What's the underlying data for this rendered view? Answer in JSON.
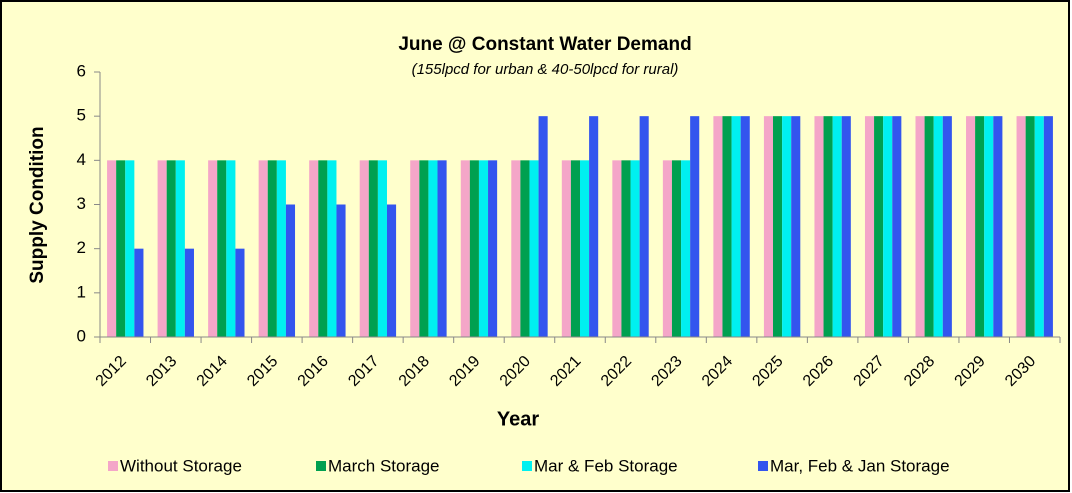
{
  "chart_data": {
    "type": "bar",
    "title": "June @ Constant Water Demand",
    "subtitle": "(155lpcd for urban & 40-50lpcd for rural)",
    "x_label": "Year",
    "y_label": "Supply Condition",
    "categories": [
      "2012",
      "2013",
      "2014",
      "2015",
      "2016",
      "2017",
      "2018",
      "2019",
      "2020",
      "2021",
      "2022",
      "2023",
      "2024",
      "2025",
      "2026",
      "2027",
      "2028",
      "2029",
      "2030"
    ],
    "series": [
      {
        "name": "Without Storage",
        "color": "#f4a6c8",
        "values": [
          4,
          4,
          4,
          4,
          4,
          4,
          4,
          4,
          4,
          4,
          4,
          4,
          5,
          5,
          5,
          5,
          5,
          5,
          5
        ]
      },
      {
        "name": "March Storage",
        "color": "#00a050",
        "values": [
          4,
          4,
          4,
          4,
          4,
          4,
          4,
          4,
          4,
          4,
          4,
          4,
          5,
          5,
          5,
          5,
          5,
          5,
          5
        ]
      },
      {
        "name": "Mar & Feb Storage",
        "color": "#00f0f0",
        "values": [
          4,
          4,
          4,
          4,
          4,
          4,
          4,
          4,
          4,
          4,
          4,
          4,
          5,
          5,
          5,
          5,
          5,
          5,
          5
        ]
      },
      {
        "name": "Mar, Feb & Jan Storage",
        "color": "#3355ee",
        "values": [
          2,
          2,
          2,
          3,
          3,
          3,
          4,
          4,
          5,
          5,
          5,
          5,
          5,
          5,
          5,
          5,
          5,
          5,
          5
        ]
      }
    ],
    "ylim": [
      0,
      6
    ],
    "yticks": [
      0,
      1,
      2,
      3,
      4,
      5,
      6
    ],
    "grid": false,
    "legend": "bottom"
  }
}
